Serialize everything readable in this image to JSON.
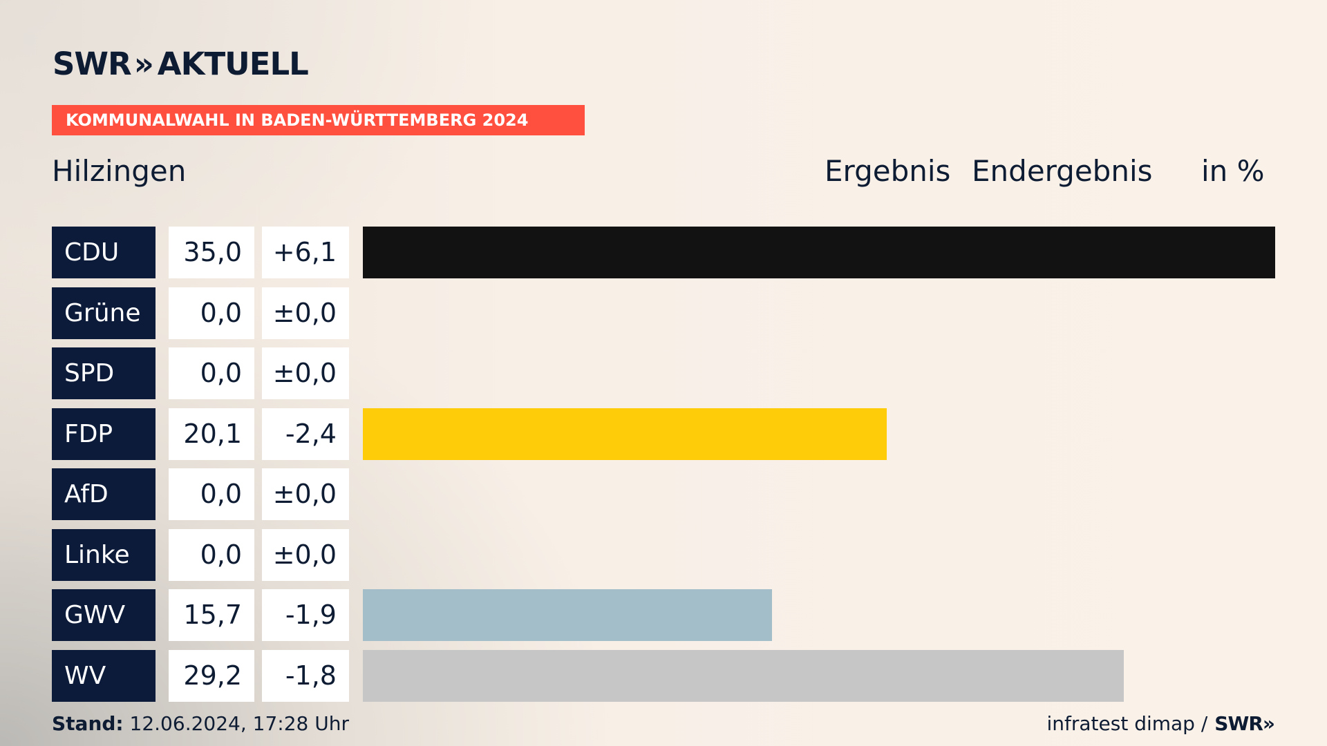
{
  "brand": {
    "logo_text": "SWR",
    "logo_chevron": "»",
    "logo_suffix": "AKTUELL"
  },
  "banner": {
    "text": "KOMMUNALWAHL IN BADEN-WÜRTTEMBERG 2024"
  },
  "header": {
    "location": "Hilzingen",
    "col_result": "Ergebnis",
    "col_status": "Endergebnis",
    "col_unit": "in %"
  },
  "chart_data": {
    "type": "bar",
    "orientation": "horizontal",
    "categories": [
      "CDU",
      "Grüne",
      "SPD",
      "FDP",
      "AfD",
      "Linke",
      "GWV",
      "WV"
    ],
    "values": [
      35.0,
      0.0,
      0.0,
      20.1,
      0.0,
      0.0,
      15.7,
      29.2
    ],
    "value_labels": [
      "35,0",
      "0,0",
      "0,0",
      "20,1",
      "0,0",
      "0,0",
      "15,7",
      "29,2"
    ],
    "changes": [
      6.1,
      0.0,
      0.0,
      -2.4,
      0.0,
      0.0,
      -1.9,
      -1.8
    ],
    "change_labels": [
      "+6,1",
      "±0,0",
      "±0,0",
      "-2,4",
      "±0,0",
      "±0,0",
      "-1,9",
      "-1,8"
    ],
    "colors": [
      "#121212",
      "#4a9a3a",
      "#e3000f",
      "#ffcc0a",
      "#009ee0",
      "#be3075",
      "#a3bec8",
      "#c6c6c6"
    ],
    "xlim": [
      0,
      35
    ]
  },
  "footer": {
    "stand_label": "Stand:",
    "stand_value": "12.06.2024, 17:28 Uhr",
    "source": "infratest dimap /",
    "source_logo": "SWR»"
  }
}
